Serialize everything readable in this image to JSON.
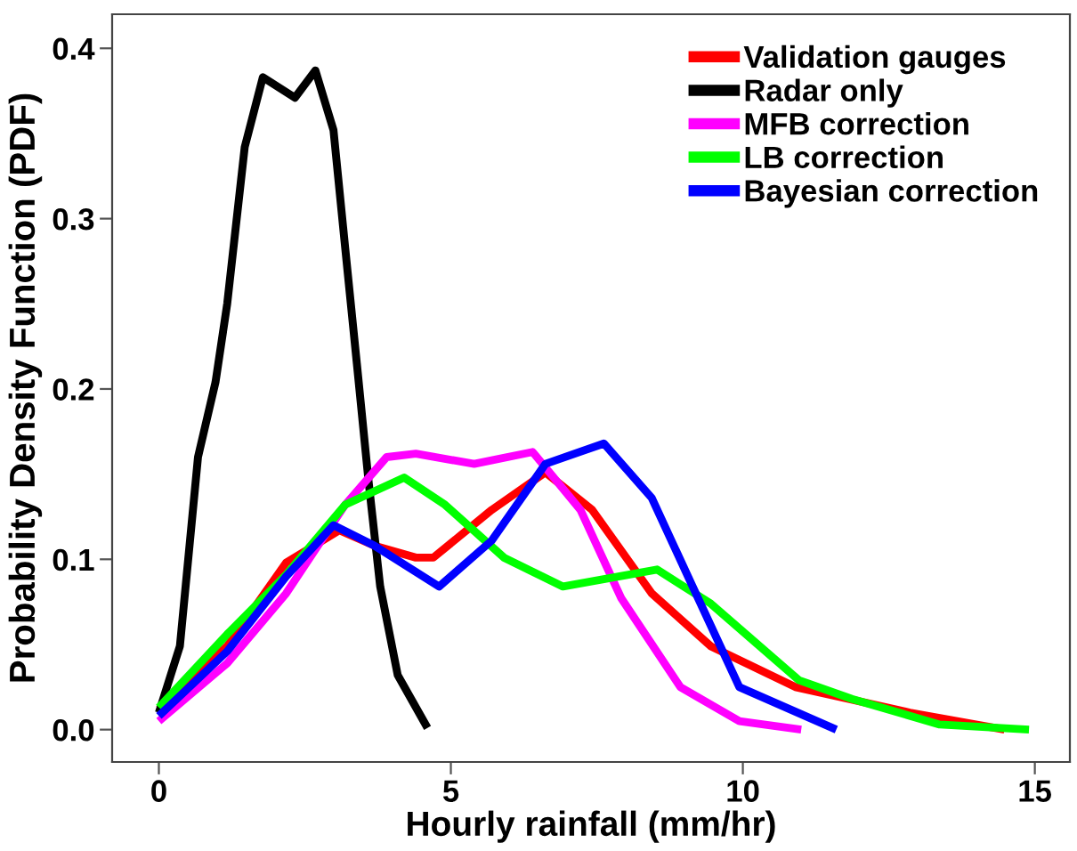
{
  "chart_data": {
    "type": "line",
    "xlabel": "Hourly rainfall (mm/hr)",
    "ylabel": "Probability Density Function (PDF)",
    "xlim": [
      -0.8,
      15.6
    ],
    "ylim": [
      -0.019,
      0.42
    ],
    "xticks": [
      0,
      5,
      10,
      15
    ],
    "yticks": [
      {
        "value": 0,
        "label": "0.0"
      },
      {
        "value": 0.1,
        "label": "0.1"
      },
      {
        "value": 0.2,
        "label": "0.2"
      },
      {
        "value": 0.3,
        "label": "0.3"
      },
      {
        "value": 0.4,
        "label": "0.4"
      }
    ],
    "legend": "top right",
    "grid": false,
    "line_style": "solid",
    "marker": "none",
    "series": [
      {
        "name": "Validation gauges",
        "color": "#ff0000",
        "x": [
          0.0,
          1.17,
          2.18,
          3.09,
          3.69,
          4.4,
          4.7,
          5.7,
          6.62,
          7.42,
          8.44,
          9.45,
          10.9,
          12.86,
          14.48
        ],
        "values": [
          0.012,
          0.049,
          0.098,
          0.117,
          0.108,
          0.101,
          0.101,
          0.129,
          0.151,
          0.129,
          0.08,
          0.049,
          0.025,
          0.01,
          0.0
        ]
      },
      {
        "name": "Radar only",
        "color": "#000000",
        "x": [
          0.0,
          0.36,
          0.67,
          0.97,
          1.17,
          1.47,
          1.78,
          2.33,
          2.68,
          2.99,
          3.19,
          3.39,
          3.59,
          3.79,
          4.09,
          4.6
        ],
        "values": [
          0.01,
          0.049,
          0.16,
          0.204,
          0.25,
          0.342,
          0.383,
          0.371,
          0.387,
          0.352,
          0.283,
          0.215,
          0.146,
          0.084,
          0.032,
          0.001
        ]
      },
      {
        "name": "MFB correction",
        "color": "#ff00ff",
        "x": [
          0.0,
          1.17,
          2.18,
          3.19,
          3.9,
          4.4,
          5.4,
          6.4,
          7.22,
          7.92,
          8.93,
          9.94,
          11.0
        ],
        "values": [
          0.005,
          0.039,
          0.08,
          0.132,
          0.16,
          0.162,
          0.156,
          0.163,
          0.129,
          0.077,
          0.025,
          0.005,
          0.0
        ]
      },
      {
        "name": "LB correction",
        "color": "#00ff00",
        "x": [
          0.0,
          1.17,
          2.18,
          3.19,
          4.2,
          4.9,
          5.91,
          6.92,
          8.53,
          9.45,
          10.96,
          11.87,
          13.37,
          14.9
        ],
        "values": [
          0.013,
          0.056,
          0.091,
          0.132,
          0.148,
          0.132,
          0.101,
          0.084,
          0.094,
          0.074,
          0.029,
          0.018,
          0.003,
          0.0
        ]
      },
      {
        "name": "Bayesian correction",
        "color": "#0000ff",
        "x": [
          0.0,
          1.17,
          2.18,
          2.99,
          3.69,
          4.8,
          5.7,
          6.62,
          7.62,
          8.44,
          9.14,
          9.94,
          11.6
        ],
        "values": [
          0.008,
          0.046,
          0.09,
          0.12,
          0.108,
          0.084,
          0.111,
          0.156,
          0.168,
          0.136,
          0.084,
          0.025,
          0.0
        ]
      }
    ]
  }
}
